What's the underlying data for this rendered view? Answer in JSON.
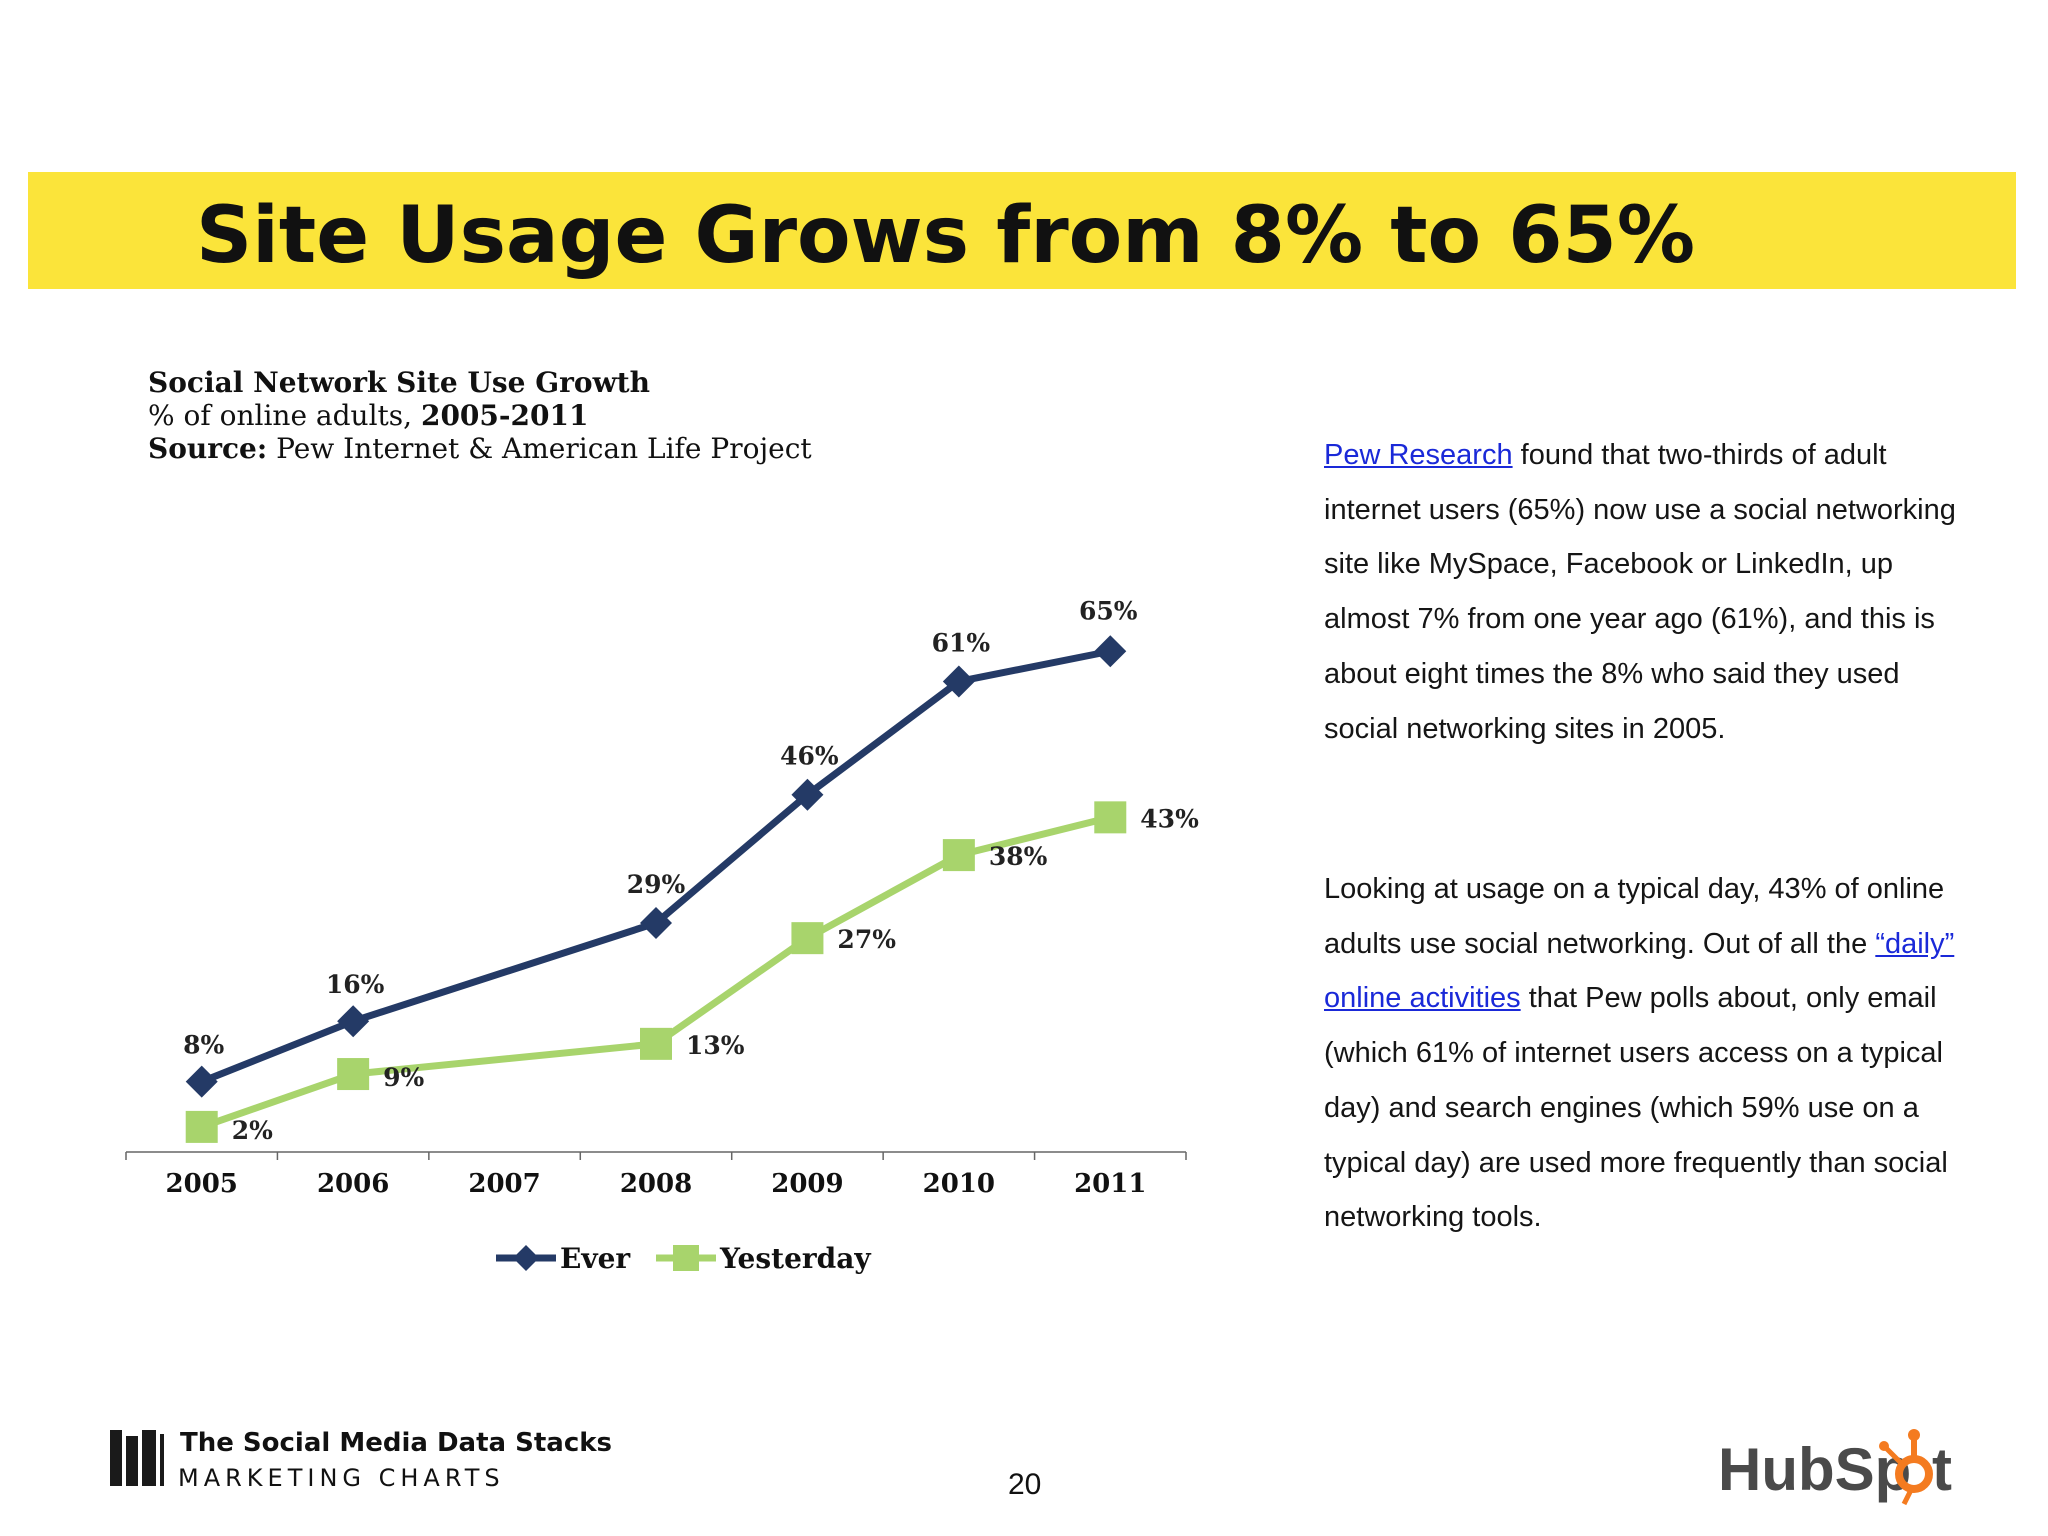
{
  "slide": {
    "title": "Site Usage Grows from 8% to 65%",
    "page_number": "20"
  },
  "chart_header": {
    "title": "Social Network Site Use Growth",
    "subtitle_prefix": "% of online adults, ",
    "subtitle_years": "2005-2011",
    "source_label": "Source:",
    "source_text": " Pew Internet & American Life Project"
  },
  "chart_data": {
    "type": "line",
    "title": "Social Network Site Use Growth",
    "categories": [
      "2005",
      "2006",
      "2007",
      "2008",
      "2009",
      "2010",
      "2011"
    ],
    "ylim": [
      0,
      70
    ],
    "grid": false,
    "legend_position": "bottom",
    "series": [
      {
        "name": "Ever",
        "color": "#243a66",
        "marker": "diamond",
        "values": [
          8,
          16,
          null,
          29,
          46,
          61,
          65
        ],
        "labels": [
          "8%",
          "16%",
          null,
          "29%",
          "46%",
          "61%",
          "65%"
        ]
      },
      {
        "name": "Yesterday",
        "color": "#a8d46c",
        "marker": "square",
        "values": [
          2,
          9,
          null,
          13,
          27,
          38,
          43
        ],
        "labels": [
          "2%",
          "9%",
          null,
          "13%",
          "27%",
          "38%",
          "43%"
        ]
      }
    ]
  },
  "text_panel": {
    "p1_link": "Pew Research",
    "p1_text": " found that two-thirds of adult internet users (65%) now use a social networking site like MySpace, Facebook or LinkedIn, up almost 7% from one year ago (61%), and this is about eight times the 8% who said they used social networking sites in 2005.",
    "p2_before": "Looking at usage on a typical day, 43% of online adults use social networking. Out of all the ",
    "p2_link": "“daily” online activities",
    "p2_after": " that Pew polls about, only email (which 61% of internet users access on a typical day) and search engines (which 59% use on a typical day) are used more frequently than social networking tools."
  },
  "footer": {
    "brand_line1": "The Social Media Data Stacks",
    "brand_line2": "MARKETING CHARTS",
    "hubspot_text": "HubSpot",
    "hubspot_color": "#f47b20"
  }
}
